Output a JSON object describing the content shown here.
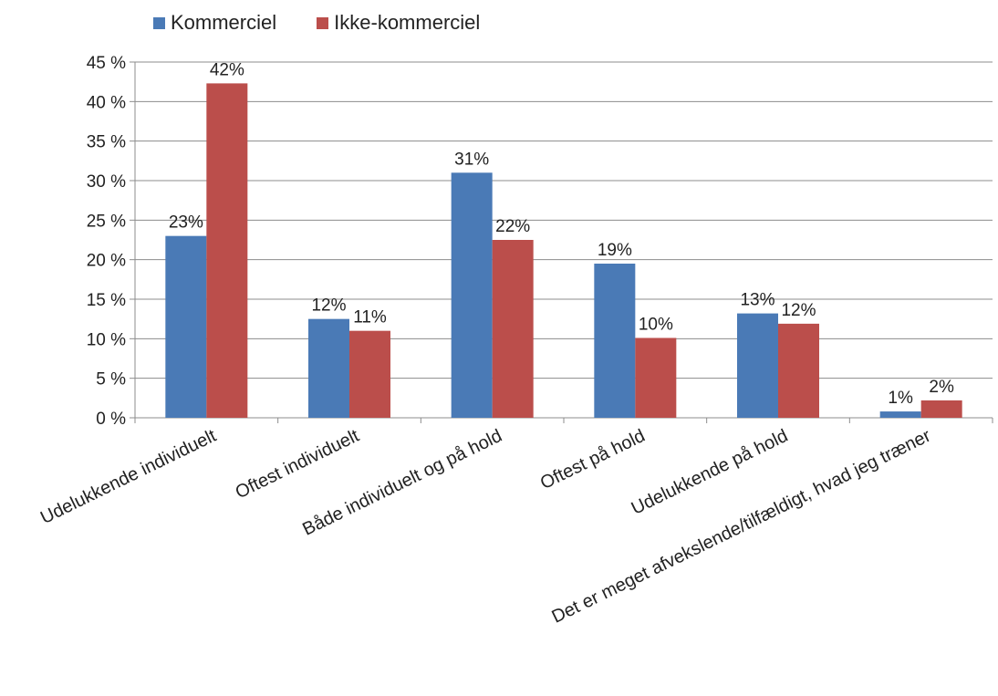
{
  "chart_data": {
    "type": "bar",
    "title": "",
    "xlabel": "",
    "ylabel": "",
    "categories": [
      "Udelukkende individuelt",
      "Oftest individuelt",
      "Både individuelt og på hold",
      "Oftest på hold",
      "Udelukkende på hold",
      "Det er meget afvekslende/tilfældigt, hvad jeg træner"
    ],
    "series": [
      {
        "name": "Kommerciel",
        "color": "#4a7ab6",
        "values": [
          23,
          12.5,
          31,
          19.5,
          13.2,
          0.8
        ],
        "labels": [
          "23%",
          "12%",
          "31%",
          "19%",
          "13%",
          "1%"
        ]
      },
      {
        "name": "Ikke-kommerciel",
        "color": "#bb4e4b",
        "values": [
          42.3,
          11,
          22.5,
          10.1,
          11.9,
          2.2
        ],
        "labels": [
          "42%",
          "11%",
          "22%",
          "10%",
          "12%",
          "2%"
        ]
      }
    ],
    "ylim": [
      0,
      45
    ],
    "yticks": [
      0,
      5,
      10,
      15,
      20,
      25,
      30,
      35,
      40,
      45
    ],
    "ytick_labels": [
      "0 %",
      "5 %",
      "10 %",
      "15 %",
      "20 %",
      "25 %",
      "30 %",
      "35 %",
      "40 %",
      "45 %"
    ],
    "grid": true,
    "legend_position": "top-left"
  }
}
